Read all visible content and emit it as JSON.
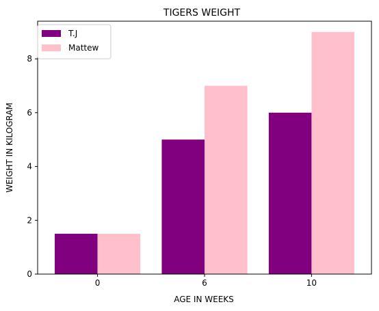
{
  "chart_data": {
    "type": "bar",
    "title": "TIGERS WEIGHT",
    "xlabel": "AGE IN WEEKS",
    "ylabel": "WEIGHT IN KILOGRAM",
    "categories": [
      "0",
      "6",
      "10"
    ],
    "series": [
      {
        "name": "T.J",
        "values": [
          1.5,
          5,
          6
        ],
        "color": "#800080"
      },
      {
        "name": "Mattew",
        "values": [
          1.5,
          7,
          9
        ],
        "color": "#ffc0cb"
      }
    ],
    "ylim": [
      0,
      9.4
    ],
    "yticks": [
      0,
      2,
      4,
      6,
      8
    ],
    "grid": false,
    "legend_position": "top-left"
  }
}
